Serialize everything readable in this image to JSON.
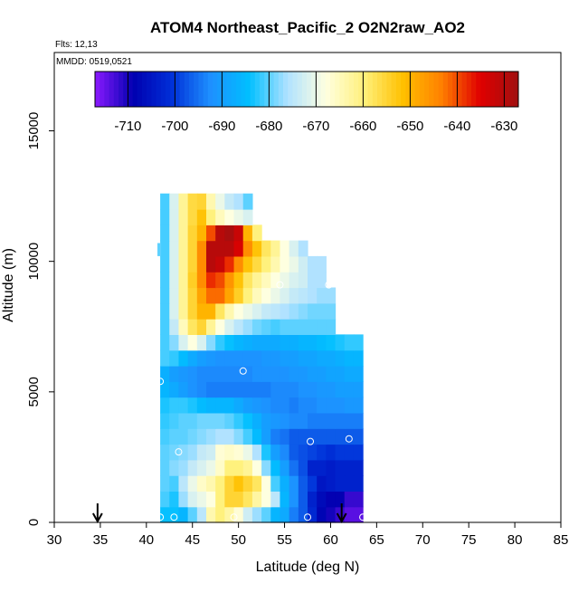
{
  "chart_data": {
    "type": "heatmap",
    "title": "ATOM4 Northeast_Pacific_2 O2N2raw_AO2",
    "flights_label": "Flts: 12,13",
    "mmdd_label": "MMDD: 0519,0521",
    "xlabel": "Latitude (deg N)",
    "ylabel": "Altitude (m)",
    "xlim": [
      30,
      85
    ],
    "ylim": [
      0,
      18000
    ],
    "x_ticks": [
      30,
      35,
      40,
      45,
      50,
      55,
      60,
      65,
      70,
      75,
      80,
      85
    ],
    "x_tick_labels": [
      "30",
      "35",
      "40",
      "45",
      "50",
      "55",
      "60",
      "65",
      "70",
      "75",
      "80",
      "85"
    ],
    "y_ticks": [
      0,
      5000,
      10000,
      15000
    ],
    "y_tick_labels": [
      "0",
      "5000",
      "10000",
      "15000"
    ],
    "colorbar": {
      "range": [
        -717,
        -627
      ],
      "ticks": [
        -710,
        -700,
        -690,
        -680,
        -670,
        -660,
        -650,
        -640,
        -630
      ],
      "tick_labels": [
        "-710",
        "-700",
        "-690",
        "-680",
        "-670",
        "-660",
        "-650",
        "-640",
        "-630"
      ],
      "colors": [
        "#8c1aff",
        "#0000b0",
        "#0030d8",
        "#1e90ff",
        "#00bfff",
        "#b0e2ff",
        "#ffffe0",
        "#fff07a",
        "#ffc000",
        "#ff8000",
        "#e00000",
        "#a01010"
      ]
    },
    "field": {
      "x_start": 41.5,
      "x_step": 1.0,
      "y_step": 600,
      "rows": [
        [
          -684,
          -684,
          -686,
          -680,
          -675,
          -664,
          -660,
          -663,
          -667,
          -673,
          -677,
          -680,
          -686,
          -688,
          -694,
          -697,
          -702,
          -708,
          -710,
          -712,
          -714,
          -714
        ],
        [
          -681,
          -683,
          -677,
          -672,
          -670,
          -668,
          -660,
          -655,
          -655,
          -658,
          -663,
          -668,
          -675,
          -686,
          -692,
          -697,
          -703,
          -707,
          -709,
          -709,
          -712,
          -712
        ],
        [
          -680,
          -681,
          -675,
          -670,
          -666,
          -664,
          -660,
          -655,
          -652,
          -655,
          -658,
          -668,
          -681,
          -687,
          -692,
          -697,
          -700,
          -705,
          -704,
          -703,
          -703,
          -703
        ],
        [
          -680,
          -678,
          -677,
          -674,
          -672,
          -670,
          -666,
          -660,
          -660,
          -662,
          -668,
          -678,
          -685,
          -690,
          -695,
          -698,
          -703,
          -703,
          -704,
          -703,
          -703,
          -703
        ],
        [
          -680,
          -679,
          -678,
          -677,
          -674,
          -673,
          -667,
          -666,
          -667,
          -670,
          -676,
          -683,
          -690,
          -693,
          -697,
          -698,
          -699,
          -700,
          -701,
          -700,
          -700,
          -700
        ],
        [
          -681,
          -680,
          -680,
          -679,
          -678,
          -677,
          -676,
          -676,
          -678,
          -681,
          -685,
          -690,
          -694,
          -695,
          -697,
          -697,
          -697,
          -697,
          -697,
          -697,
          -697,
          -697
        ],
        [
          -682,
          -681,
          -680,
          -680,
          -679,
          -679,
          -679,
          -680,
          -682,
          -684,
          -687,
          -690,
          -691,
          -692,
          -693,
          -693,
          -694,
          -694,
          -694,
          -694,
          -694,
          -694
        ],
        [
          -683,
          -682,
          -682,
          -683,
          -685,
          -686,
          -686,
          -686,
          -688,
          -690,
          -691,
          -692,
          -693,
          -693,
          -694,
          -693,
          -693,
          -692,
          -692,
          -692,
          -691,
          -691
        ],
        [
          -686,
          -688,
          -690,
          -692,
          -693,
          -694,
          -694,
          -694,
          -694,
          -694,
          -694,
          -694,
          -693,
          -693,
          -693,
          -692,
          -692,
          -691,
          -691,
          -690,
          -690,
          -690
        ],
        [
          -687,
          -690,
          -691,
          -692,
          -693,
          -693,
          -693,
          -693,
          -693,
          -693,
          -692,
          -692,
          -692,
          -692,
          -691,
          -691,
          -690,
          -690,
          -689,
          -689,
          -688,
          -688
        ],
        [
          -681,
          -682,
          -685,
          -688,
          -690,
          -691,
          -692,
          -692,
          -692,
          -692,
          -692,
          -691,
          -691,
          -690,
          -690,
          -689,
          -689,
          -688,
          -688,
          -687,
          -686,
          -686
        ],
        [
          -681,
          -678,
          -672,
          -668,
          -672,
          -678,
          -682,
          -684,
          -686,
          -687,
          -688,
          -688,
          -688,
          -687,
          -687,
          -686,
          -686,
          -685,
          -684,
          -683,
          -682,
          -682
        ],
        [
          -681,
          -674,
          -665,
          -658,
          -655,
          -662,
          -668,
          -672,
          -675,
          -677,
          -679,
          -680,
          -681,
          -680,
          -680,
          -680,
          -680,
          -680,
          -680,
          null,
          null,
          null
        ],
        [
          -681,
          -672,
          -662,
          -655,
          -650,
          -650,
          -658,
          -664,
          -668,
          -670,
          -672,
          -674,
          -675,
          -676,
          -677,
          -678,
          -679,
          -679,
          -679,
          null,
          null,
          null
        ],
        [
          -681,
          -672,
          -662,
          -655,
          -648,
          -642,
          -642,
          -648,
          -654,
          -660,
          -665,
          -668,
          -670,
          -672,
          -674,
          -675,
          -676,
          -677,
          -677,
          null,
          null,
          null
        ],
        [
          -681,
          -672,
          -662,
          -654,
          -645,
          -638,
          -640,
          -646,
          -652,
          -658,
          -662,
          -665,
          -668,
          -670,
          -672,
          -673,
          -676,
          -676,
          null,
          null,
          null,
          null
        ],
        [
          -681,
          -672,
          -662,
          -655,
          -645,
          -630,
          -632,
          -638,
          -645,
          -652,
          -656,
          -660,
          -664,
          -668,
          -670,
          -673,
          -676,
          -676,
          null,
          null,
          null,
          null
        ],
        [
          -681,
          -672,
          -662,
          -655,
          -645,
          -630,
          -630,
          -630,
          -634,
          -645,
          -652,
          -658,
          -662,
          -668,
          -672,
          -676,
          null,
          null,
          null,
          null,
          null,
          null
        ],
        [
          -681,
          -672,
          -662,
          -655,
          -650,
          -640,
          -630,
          -628,
          -632,
          -650,
          -660,
          null,
          null,
          null,
          null,
          null,
          null,
          null,
          null,
          null,
          null,
          null
        ],
        [
          -681,
          -672,
          -662,
          -656,
          -652,
          -660,
          -665,
          -668,
          -670,
          -672,
          null,
          null,
          null,
          null,
          null,
          null,
          null,
          null,
          null,
          null,
          null,
          null
        ],
        [
          -681,
          -672,
          -662,
          -656,
          -655,
          -664,
          -670,
          -674,
          -676,
          -680,
          null,
          null,
          null,
          null,
          null,
          null,
          null,
          null,
          null,
          null,
          null,
          null
        ]
      ],
      "extra_cell": {
        "x": 41.2,
        "y": 10200,
        "value": -680
      }
    },
    "sample_points": [
      [
        41.5,
        200
      ],
      [
        43,
        200
      ],
      [
        49.5,
        200
      ],
      [
        57.5,
        200
      ],
      [
        63.5,
        200
      ],
      [
        74,
        200
      ],
      [
        79.2,
        200
      ],
      [
        43.5,
        2700
      ],
      [
        57.8,
        3100
      ],
      [
        62,
        3200
      ],
      [
        74,
        1300
      ],
      [
        80,
        2900
      ],
      [
        41.5,
        5400
      ],
      [
        50.5,
        5800
      ],
      [
        80.5,
        6100
      ],
      [
        54.5,
        9100
      ],
      [
        59.8,
        9100
      ],
      [
        76.5,
        8900
      ],
      [
        81.3,
        8900
      ]
    ],
    "arrows": [
      34.7,
      61.2
    ]
  }
}
